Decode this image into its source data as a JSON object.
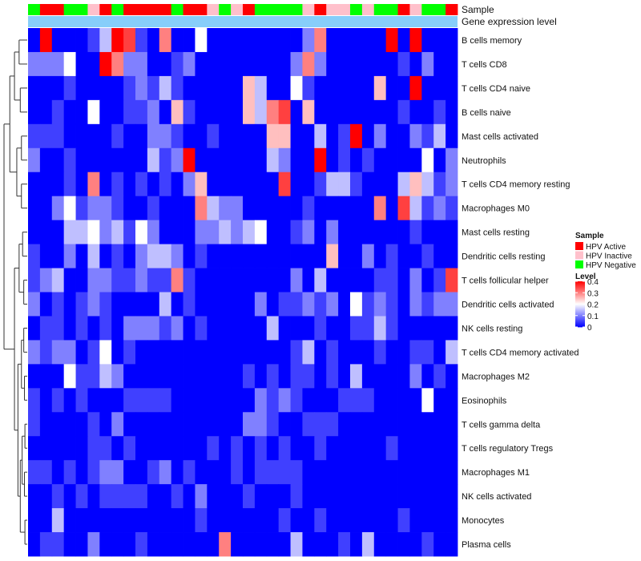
{
  "chart_data": {
    "type": "heatmap",
    "title": "",
    "annotation_labels": {
      "sample": "Sample",
      "expression": "Gene expression level"
    },
    "rows": [
      "B cells memory",
      "T cells CD8",
      "T cells CD4 naive",
      "B cells naive",
      "Mast cells activated",
      "Neutrophils",
      "T cells CD4 memory resting",
      "Macrophages M0",
      "Mast cells resting",
      "Dendritic cells resting",
      "T cells follicular helper",
      "Dendritic cells activated",
      "NK cells resting",
      "T cells CD4 memory activated",
      "Macrophages M2",
      "Eosinophils",
      "T cells gamma delta",
      "T cells regulatory  Tregs",
      "Macrophages M1",
      "NK cells activated",
      "Monocytes",
      "Plasma cells"
    ],
    "n_columns": 36,
    "sample_groups": [
      "Negative",
      "Active",
      "Active",
      "Negative",
      "Negative",
      "Inactive",
      "Active",
      "Negative",
      "Active",
      "Active",
      "Active",
      "Active",
      "Negative",
      "Active",
      "Active",
      "Inactive",
      "Negative",
      "Inactive",
      "Active",
      "Negative",
      "Negative",
      "Negative",
      "Negative",
      "Inactive",
      "Active",
      "Inactive",
      "Inactive",
      "Negative",
      "Inactive",
      "Negative",
      "Negative",
      "Active",
      "Inactive",
      "Negative",
      "Negative",
      "Active"
    ],
    "legend": {
      "sample_title": "Sample",
      "sample_entries": [
        {
          "key": "Active",
          "label": "HPV Active",
          "color": "#ff0000"
        },
        {
          "key": "Inactive",
          "label": "HPV Inactive",
          "color": "#ffc0cb"
        },
        {
          "key": "Negative",
          "label": "HPV Negative",
          "color": "#00ff00"
        }
      ],
      "level_title": "Level",
      "level_ticks": [
        "0.4",
        "0.3",
        "0.2",
        "0.1",
        "0"
      ],
      "level_tick_values": [
        0.4,
        0.3,
        0.2,
        0.1,
        0
      ],
      "level_range": [
        0,
        0.4
      ]
    },
    "colorscale": {
      "low": "#0000ff",
      "mid": "#ffffff",
      "high": "#ff0000",
      "midpoint": 0.2
    },
    "expression_bar_color": "#87cefa",
    "values": [
      [
        0.0,
        0.4,
        0.0,
        0.0,
        0.0,
        0.05,
        0.15,
        0.4,
        0.35,
        0.05,
        0.0,
        0.3,
        0.0,
        0.0,
        0.2,
        0.0,
        0.0,
        0.0,
        0.0,
        0.0,
        0.0,
        0.0,
        0.0,
        0.1,
        0.3,
        0.0,
        0.0,
        0.0,
        0.0,
        0.0,
        0.4,
        0.0,
        0.4,
        0.0,
        0.0,
        0.0
      ],
      [
        0.1,
        0.1,
        0.1,
        0.2,
        0.0,
        0.0,
        0.4,
        0.3,
        0.1,
        0.1,
        0.0,
        0.0,
        0.05,
        0.1,
        0.0,
        0.0,
        0.0,
        0.0,
        0.0,
        0.0,
        0.0,
        0.0,
        0.1,
        0.3,
        0.1,
        0.0,
        0.0,
        0.0,
        0.0,
        0.0,
        0.0,
        0.05,
        0.0,
        0.1,
        0.0,
        0.0
      ],
      [
        0.0,
        0.0,
        0.0,
        0.05,
        0.0,
        0.0,
        0.0,
        0.0,
        0.05,
        0.1,
        0.05,
        0.15,
        0.05,
        0.0,
        0.0,
        0.0,
        0.0,
        0.0,
        0.25,
        0.15,
        0.0,
        0.0,
        0.2,
        0.05,
        0.0,
        0.0,
        0.0,
        0.0,
        0.0,
        0.25,
        0.0,
        0.0,
        0.4,
        0.0,
        0.0,
        0.0
      ],
      [
        0.0,
        0.0,
        0.05,
        0.0,
        0.0,
        0.2,
        0.0,
        0.0,
        0.05,
        0.05,
        0.1,
        0.0,
        0.25,
        0.05,
        0.0,
        0.0,
        0.0,
        0.0,
        0.25,
        0.15,
        0.3,
        0.35,
        0.0,
        0.25,
        0.0,
        0.0,
        0.0,
        0.0,
        0.0,
        0.0,
        0.0,
        0.05,
        0.0,
        0.0,
        0.05,
        0.0
      ],
      [
        0.05,
        0.05,
        0.05,
        0.0,
        0.0,
        0.0,
        0.0,
        0.05,
        0.0,
        0.0,
        0.1,
        0.1,
        0.05,
        0.0,
        0.0,
        0.05,
        0.0,
        0.0,
        0.0,
        0.0,
        0.25,
        0.25,
        0.0,
        0.0,
        0.15,
        0.0,
        0.05,
        0.4,
        0.0,
        0.1,
        0.0,
        0.0,
        0.1,
        0.05,
        0.15,
        0.0
      ],
      [
        0.1,
        0.0,
        0.0,
        0.05,
        0.0,
        0.0,
        0.0,
        0.0,
        0.0,
        0.0,
        0.15,
        0.05,
        0.1,
        0.4,
        0.0,
        0.0,
        0.0,
        0.0,
        0.0,
        0.0,
        0.15,
        0.1,
        0.0,
        0.0,
        0.4,
        0.0,
        0.05,
        0.0,
        0.05,
        0.0,
        0.0,
        0.0,
        0.0,
        0.2,
        0.0,
        0.1
      ],
      [
        0.0,
        0.0,
        0.0,
        0.05,
        0.0,
        0.3,
        0.0,
        0.05,
        0.0,
        0.05,
        0.0,
        0.05,
        0.0,
        0.1,
        0.25,
        0.0,
        0.0,
        0.0,
        0.0,
        0.0,
        0.0,
        0.35,
        0.0,
        0.0,
        0.05,
        0.15,
        0.15,
        0.05,
        0.0,
        0.0,
        0.0,
        0.15,
        0.25,
        0.15,
        0.05,
        0.1
      ],
      [
        0.0,
        0.0,
        0.1,
        0.2,
        0.05,
        0.1,
        0.1,
        0.05,
        0.0,
        0.0,
        0.05,
        0.0,
        0.0,
        0.0,
        0.3,
        0.15,
        0.1,
        0.1,
        0.0,
        0.0,
        0.0,
        0.0,
        0.0,
        0.05,
        0.0,
        0.0,
        0.0,
        0.0,
        0.0,
        0.3,
        0.0,
        0.35,
        0.15,
        0.05,
        0.1,
        0.05
      ],
      [
        0.0,
        0.0,
        0.0,
        0.15,
        0.15,
        0.2,
        0.1,
        0.15,
        0.05,
        0.2,
        0.1,
        0.0,
        0.0,
        0.0,
        0.1,
        0.1,
        0.15,
        0.1,
        0.15,
        0.2,
        0.0,
        0.0,
        0.05,
        0.1,
        0.0,
        0.1,
        0.0,
        0.0,
        0.0,
        0.0,
        0.0,
        0.0,
        0.05,
        0.0,
        0.0,
        0.0
      ],
      [
        0.05,
        0.0,
        0.0,
        0.1,
        0.0,
        0.15,
        0.0,
        0.05,
        0.0,
        0.1,
        0.15,
        0.15,
        0.1,
        0.0,
        0.05,
        0.0,
        0.0,
        0.0,
        0.0,
        0.0,
        0.0,
        0.0,
        0.0,
        0.0,
        0.0,
        0.25,
        0.0,
        0.0,
        0.1,
        0.0,
        0.05,
        0.0,
        0.0,
        0.05,
        0.0,
        0.0
      ],
      [
        0.05,
        0.1,
        0.15,
        0.0,
        0.0,
        0.1,
        0.1,
        0.05,
        0.05,
        0.1,
        0.05,
        0.05,
        0.3,
        0.05,
        0.0,
        0.0,
        0.0,
        0.0,
        0.0,
        0.0,
        0.0,
        0.0,
        0.1,
        0.0,
        0.15,
        0.0,
        0.0,
        0.0,
        0.0,
        0.05,
        0.05,
        0.0,
        0.1,
        0.0,
        0.05,
        0.35
      ],
      [
        0.1,
        0.0,
        0.05,
        0.0,
        0.05,
        0.1,
        0.05,
        0.0,
        0.0,
        0.0,
        0.0,
        0.15,
        0.0,
        0.05,
        0.0,
        0.0,
        0.0,
        0.0,
        0.0,
        0.1,
        0.0,
        0.05,
        0.05,
        0.1,
        0.05,
        0.1,
        0.0,
        0.2,
        0.05,
        0.1,
        0.05,
        0.0,
        0.1,
        0.05,
        0.1,
        0.1
      ],
      [
        0.0,
        0.05,
        0.05,
        0.0,
        0.05,
        0.0,
        0.05,
        0.0,
        0.1,
        0.1,
        0.1,
        0.05,
        0.1,
        0.0,
        0.05,
        0.0,
        0.0,
        0.0,
        0.0,
        0.0,
        0.15,
        0.0,
        0.0,
        0.0,
        0.05,
        0.0,
        0.0,
        0.05,
        0.05,
        0.15,
        0.05,
        0.0,
        0.0,
        0.0,
        0.0,
        0.0
      ],
      [
        0.1,
        0.05,
        0.1,
        0.1,
        0.0,
        0.05,
        0.2,
        0.0,
        0.05,
        0.0,
        0.0,
        0.0,
        0.0,
        0.0,
        0.0,
        0.0,
        0.0,
        0.0,
        0.0,
        0.0,
        0.0,
        0.0,
        0.05,
        0.15,
        0.0,
        0.05,
        0.0,
        0.0,
        0.0,
        0.05,
        0.0,
        0.0,
        0.05,
        0.05,
        0.0,
        0.15
      ],
      [
        0.0,
        0.0,
        0.0,
        0.2,
        0.05,
        0.05,
        0.15,
        0.1,
        0.0,
        0.0,
        0.0,
        0.0,
        0.0,
        0.0,
        0.0,
        0.0,
        0.0,
        0.0,
        0.05,
        0.0,
        0.05,
        0.0,
        0.05,
        0.05,
        0.0,
        0.05,
        0.0,
        0.15,
        0.0,
        0.0,
        0.0,
        0.0,
        0.1,
        0.0,
        0.05,
        0.0
      ],
      [
        0.05,
        0.0,
        0.05,
        0.0,
        0.05,
        0.0,
        0.0,
        0.0,
        0.05,
        0.05,
        0.05,
        0.05,
        0.0,
        0.0,
        0.0,
        0.0,
        0.0,
        0.0,
        0.0,
        0.1,
        0.05,
        0.1,
        0.05,
        0.0,
        0.0,
        0.0,
        0.05,
        0.05,
        0.05,
        0.0,
        0.0,
        0.0,
        0.0,
        0.2,
        0.0,
        0.0
      ],
      [
        0.05,
        0.0,
        0.0,
        0.0,
        0.0,
        0.05,
        0.0,
        0.1,
        0.0,
        0.0,
        0.0,
        0.0,
        0.0,
        0.0,
        0.0,
        0.0,
        0.0,
        0.0,
        0.1,
        0.1,
        0.05,
        0.0,
        0.0,
        0.05,
        0.05,
        0.05,
        0.0,
        0.0,
        0.0,
        0.0,
        0.0,
        0.0,
        0.0,
        0.0,
        0.0,
        0.0
      ],
      [
        0.0,
        0.0,
        0.0,
        0.0,
        0.0,
        0.05,
        0.05,
        0.0,
        0.05,
        0.0,
        0.0,
        0.0,
        0.0,
        0.0,
        0.0,
        0.05,
        0.0,
        0.05,
        0.0,
        0.05,
        0.0,
        0.05,
        0.0,
        0.0,
        0.05,
        0.0,
        0.0,
        0.0,
        0.0,
        0.0,
        0.05,
        0.0,
        0.0,
        0.0,
        0.0,
        0.0
      ],
      [
        0.05,
        0.05,
        0.0,
        0.05,
        0.0,
        0.05,
        0.1,
        0.1,
        0.0,
        0.0,
        0.05,
        0.1,
        0.0,
        0.05,
        0.0,
        0.0,
        0.0,
        0.05,
        0.0,
        0.05,
        0.05,
        0.05,
        0.05,
        0.0,
        0.0,
        0.0,
        0.0,
        0.0,
        0.0,
        0.0,
        0.0,
        0.0,
        0.0,
        0.0,
        0.0,
        0.0
      ],
      [
        0.0,
        0.0,
        0.05,
        0.0,
        0.05,
        0.0,
        0.05,
        0.05,
        0.05,
        0.05,
        0.0,
        0.0,
        0.05,
        0.0,
        0.1,
        0.0,
        0.0,
        0.0,
        0.05,
        0.0,
        0.0,
        0.0,
        0.05,
        0.0,
        0.0,
        0.0,
        0.0,
        0.0,
        0.0,
        0.0,
        0.0,
        0.0,
        0.0,
        0.0,
        0.0,
        0.0
      ],
      [
        0.0,
        0.0,
        0.15,
        0.0,
        0.0,
        0.0,
        0.0,
        0.0,
        0.0,
        0.0,
        0.0,
        0.0,
        0.0,
        0.0,
        0.05,
        0.0,
        0.0,
        0.0,
        0.0,
        0.0,
        0.0,
        0.05,
        0.0,
        0.0,
        0.05,
        0.0,
        0.0,
        0.0,
        0.0,
        0.0,
        0.0,
        0.05,
        0.0,
        0.0,
        0.0,
        0.0
      ],
      [
        0.0,
        0.05,
        0.05,
        0.0,
        0.0,
        0.1,
        0.0,
        0.0,
        0.0,
        0.05,
        0.0,
        0.0,
        0.0,
        0.0,
        0.0,
        0.0,
        0.3,
        0.0,
        0.0,
        0.0,
        0.0,
        0.0,
        0.15,
        0.0,
        0.0,
        0.0,
        0.05,
        0.0,
        0.15,
        0.0,
        0.0,
        0.0,
        0.0,
        0.05,
        0.0,
        0.0
      ]
    ]
  }
}
